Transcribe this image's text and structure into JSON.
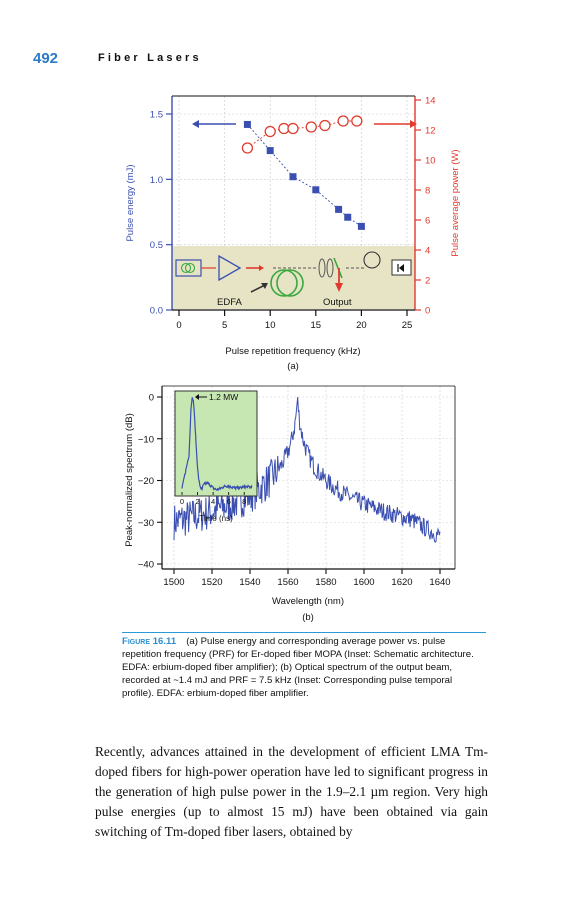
{
  "header": {
    "page_number": "492",
    "running_title": "Fiber Lasers"
  },
  "figure_a": {
    "panel_label": "(a)",
    "inset_labels": {
      "amplifier": "EDFA",
      "output": "Output"
    },
    "chart_data": {
      "type": "scatter",
      "xlabel": "Pulse repetition frequency (kHz)",
      "ylabel": "Pulse energy (mJ)",
      "y2label": "Pulse average power (W)",
      "xlim": [
        0,
        25
      ],
      "ylim": [
        0,
        1.5
      ],
      "y2lim": [
        0,
        14
      ],
      "x_ticks": [
        "0",
        "5",
        "10",
        "15",
        "20",
        "25"
      ],
      "y_ticks": [
        "0.0",
        "0.5",
        "1.0",
        "1.5"
      ],
      "y2_ticks": [
        "0",
        "2",
        "4",
        "6",
        "8",
        "10",
        "12",
        "14"
      ],
      "series": [
        {
          "axis": "left",
          "marker": "square",
          "color": "#3b4fb0",
          "x": [
            7.5,
            10,
            12.5,
            15,
            17.5,
            18.5,
            20
          ],
          "y": [
            1.42,
            1.22,
            1.02,
            0.92,
            0.77,
            0.71,
            0.64
          ]
        },
        {
          "axis": "right",
          "marker": "circle",
          "color": "#e03a2e",
          "x": [
            7.5,
            10,
            11.5,
            12.5,
            14.5,
            16,
            18,
            19.5
          ],
          "y": [
            10.8,
            11.9,
            12.1,
            12.1,
            12.2,
            12.3,
            12.6,
            12.6
          ]
        }
      ],
      "grid": true
    }
  },
  "figure_b": {
    "panel_label": "(b)",
    "chart_data": {
      "type": "line",
      "xlabel": "Wavelength (nm)",
      "ylabel": "Peak-normalized spectrum (dB)",
      "xlim": [
        1500,
        1650
      ],
      "ylim": [
        -42,
        2
      ],
      "x_ticks": [
        "1500",
        "1520",
        "1540",
        "1560",
        "1580",
        "1600",
        "1620",
        "1640"
      ],
      "y_ticks": [
        "0",
        "−10",
        "−20",
        "−30",
        "−40"
      ],
      "peak_nm": 1565,
      "color": "#3a4fb0",
      "inset": {
        "xlabel": "Time (ns)",
        "x_ticks": [
          "0",
          "2",
          "4",
          "6",
          "8"
        ],
        "annotation": "1.2 MW",
        "xlim": [
          0,
          9
        ]
      }
    }
  },
  "caption": {
    "label": "Figure 16.11",
    "text": "(a) Pulse energy and corresponding average power vs. pulse repetition frequency (PRF) for Er-doped fiber MOPA (Inset: Schematic architecture. EDFA: erbium-doped fiber amplifier); (b) Optical spectrum of the output beam, recorded at ~1.4 mJ and PRF = 7.5 kHz (Inset: Corresponding pulse temporal profile). EDFA: erbium-doped fiber amplifier."
  },
  "body": {
    "paragraph": "Recently, advances attained in the development of efficient LMA Tm-doped fibers for high-power operation have led to significant progress in the generation of high pulse power in the 1.9–2.1 µm region. Very high pulse energies (up to almost 15 mJ) have been obtained via gain switching of Tm-doped fiber lasers, obtained by"
  }
}
